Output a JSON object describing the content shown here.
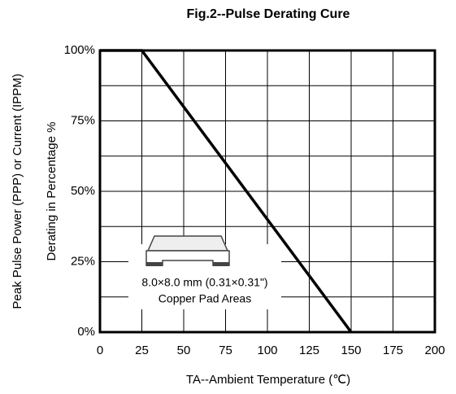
{
  "chart_data": {
    "type": "line",
    "title": "Fig.2--Pulse Derating Cure",
    "x_label": "TA--Ambient Temperature (℃)",
    "y_label": [
      "Peak Pulse Power (PPP) or Current (IPPM)",
      "Derating in Percentage %"
    ],
    "annotation": [
      "8.0×8.0 mm (0.31×0.31\")",
      "Copper Pad Areas"
    ],
    "x": [
      0,
      25,
      150
    ],
    "series": [
      {
        "color": "#000000",
        "values": [
          100,
          100,
          0
        ]
      }
    ],
    "xlim": [
      0,
      200
    ],
    "xticks": [
      0,
      25,
      50,
      75,
      100,
      125,
      150,
      175,
      200
    ],
    "ylim": [
      0,
      100
    ],
    "yticks": [
      {
        "value": 0,
        "label": "0%"
      },
      {
        "value": 25,
        "label": "25%"
      },
      {
        "value": 50,
        "label": "50%"
      },
      {
        "value": 75,
        "label": "75%"
      },
      {
        "value": 100,
        "label": "100%"
      }
    ],
    "y_minor_ticks": [
      12.5,
      37.5,
      62.5,
      87.5
    ],
    "grid": true
  }
}
